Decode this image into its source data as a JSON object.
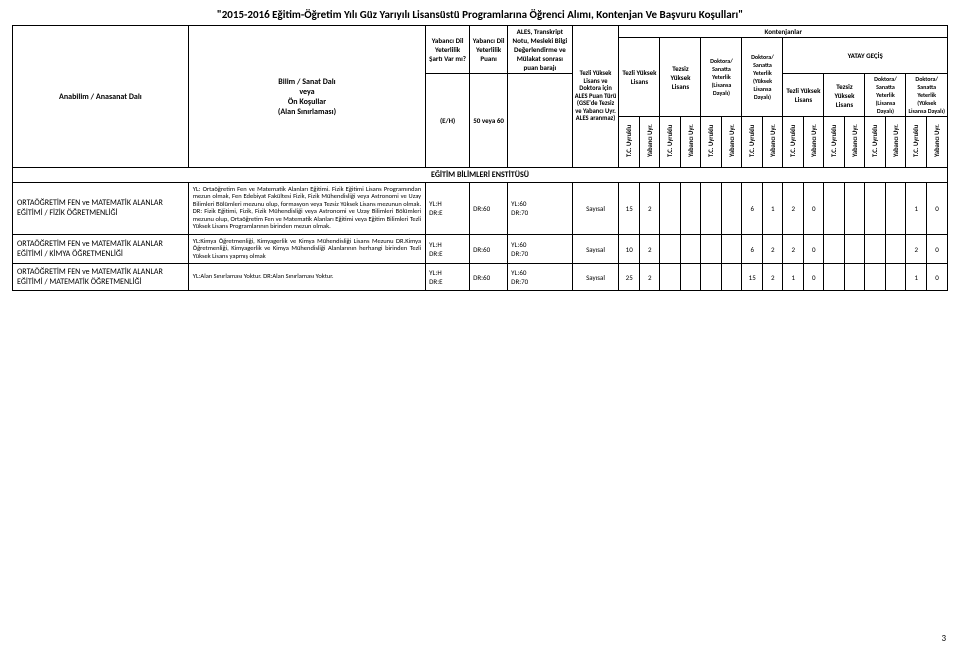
{
  "title": "\"2015-2016 Eğitim-Öğretim Yılı Güz Yarıyılı Lisansüstü Programlarına Öğrenci Alımı, Kontenjan Ve Başvuru Koşulları\"",
  "hdr": {
    "anabilim": "Anabilim / Anasanat Dalı",
    "bilim": "Bilim / Sanat Dalı\nveya\nÖn Koşullar\n(Alan Sınırlaması)",
    "varmi_top": "Yabancı Dil Yeterlilik Şartı Var mı?",
    "varmi_bot": "(E/H)",
    "puan_top": "Yabancı Dil Yeterlilik Puanı",
    "puan_bot": "50 veya 60",
    "ales_top": "ALES, Transkript Notu, Mesleki Bilgi Değerlendirme ve Mülakat sonrası puan barajı",
    "turu": "Tezli Yüksek Lisans ve Doktora için ALES Puan Türü (GSE'de Tezsiz ve Yabancı Uyr. ALES aranmaz)",
    "kontenjan": "Kontenjanlar",
    "yatay": "YATAY GEÇİŞ",
    "g1": "Tezli Yüksek Lisans",
    "g2": "Tezsiz Yüksek Lisans",
    "g3": "Doktora/ Sanatta Yeterlik (Lisansa Dayalı)",
    "g4": "Doktora/ Sanatta Yeterlik (Yüksek Lisansa Dayalı)",
    "g5": "Tezli Yüksek Lisans",
    "g6": "Tezsiz Yüksek Lisans",
    "g7": "Doktora/ Sanatta Yeterlik (Lisansa Dayalı)",
    "g8": "Doktora/ Sanatta Yeterlik (Yüksek Lisansa Dayalı)",
    "tc": "T.C. Uyruklu",
    "yab": "Yabancı Uyr."
  },
  "section": "EĞİTİM BİLİMLERİ ENSTİTÜSÜ",
  "rows": [
    {
      "name": "ORTAÖĞRETİM FEN ve MATEMATİK ALANLAR EĞİTİMİ / FİZİK ÖĞRETMENLİĞİ",
      "desc": "YL: Ortaöğretim Fen ve Matematik Alanları Eğitimi. Fizik Eğitimi Lisans Programından mezun olmak, Fen Edebiyat Fakültesi Fizik, Fizik Mühendisliği veya Astronomi ve Uzay Bilimleri Bölümleri mezunu olup, formasyon veya Tezsiz Yüksek Lisans mezunun olmak. DR: Fizik Eğitimi, Fizik, Fizik Mühendisliği veya Astronomi ve Uzay Bilimleri Bölümleri mezunu olup, Ortaöğretim Fen ve Matematik Alanları Eğitimi veya Eğitim Bilimleri Tezli Yüksek Lisans Programlarının birinden mezun olmak.",
      "varmi": "YL:H\nDR:E",
      "puan": "DR:60",
      "baraj": "YL:60\nDR:70",
      "turu": "Sayısal",
      "k": [
        "15",
        "2",
        "",
        "",
        "",
        "",
        "6",
        "1",
        "2",
        "0",
        "",
        "",
        "",
        "",
        "1",
        "0"
      ]
    },
    {
      "name": "ORTAÖĞRETİM FEN ve MATEMATİK ALANLAR EĞİTİMİ / KİMYA ÖĞRETMENLİĞİ",
      "desc": "YL:Kimya Öğretmenliği, Kimyagerlik ve Kimya Mühendisliği Lisans Mezunu DR.Kimya Öğretmenliği, Kimyagerlik ve Kimya Mühendisliği Alanlarının herhangi birinden Tezli Yüksek Lisans yapmış olmak",
      "varmi": "YL:H\nDR:E",
      "puan": "DR:60",
      "baraj": "YL:60\nDR:70",
      "turu": "Sayısal",
      "k": [
        "10",
        "2",
        "",
        "",
        "",
        "",
        "6",
        "2",
        "2",
        "0",
        "",
        "",
        "",
        "",
        "2",
        "0"
      ]
    },
    {
      "name": "ORTAÖĞRETİM FEN ve MATEMATİK ALANLAR EĞİTİMİ / MATEMATİK ÖĞRETMENLİĞİ",
      "desc": "YL:Alan Sınırlaması Yoktur. DR:Alan Sınırlaması Yoktur.",
      "varmi": "YL:H\nDR:E",
      "puan": "DR:60",
      "baraj": "YL:60\nDR:70",
      "turu": "Sayısal",
      "k": [
        "25",
        "2",
        "",
        "",
        "",
        "",
        "15",
        "2",
        "1",
        "0",
        "",
        "",
        "",
        "",
        "1",
        "0"
      ]
    }
  ],
  "pageNum": "3"
}
